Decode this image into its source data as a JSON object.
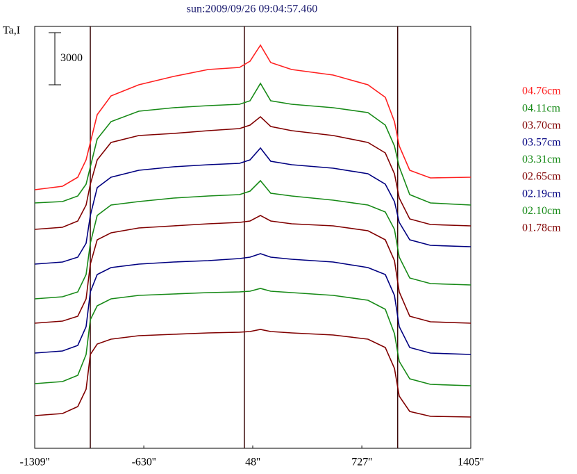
{
  "chart_data": {
    "type": "line",
    "title": "sun:2009/09/26 09:04:57.460",
    "y_label": "Ta,I",
    "scalebar": 3000,
    "vlines": [
      -963,
      -4,
      950
    ],
    "x": [
      -1309,
      -1136,
      -1041,
      -989,
      -963,
      -920,
      -834,
      -661,
      -445,
      -229,
      -34,
      31,
      96,
      160,
      290,
      549,
      765,
      873,
      930,
      960,
      1025,
      1154,
      1405
    ],
    "xlim": [
      -1309,
      1405
    ],
    "xticks": [
      {
        "value": -1309,
        "label": "-1309''"
      },
      {
        "value": -630,
        "label": "-630''"
      },
      {
        "value": 48,
        "label": "48''"
      },
      {
        "value": 727,
        "label": "727''"
      },
      {
        "value": 1405,
        "label": "1405''"
      }
    ],
    "ylim": [
      0,
      24280
    ],
    "series": [
      {
        "name": "04.76cm",
        "color": "#ff2020",
        "values": [
          14880,
          15080,
          15600,
          16600,
          17600,
          19200,
          20280,
          20920,
          21400,
          21800,
          21920,
          22280,
          23200,
          22200,
          21800,
          21480,
          20920,
          20200,
          18800,
          17400,
          16000,
          15560,
          15600
        ]
      },
      {
        "name": "04.11cm",
        "color": "#178a17",
        "values": [
          14120,
          14200,
          14520,
          15200,
          16200,
          17800,
          18800,
          19400,
          19600,
          19720,
          19800,
          20000,
          21000,
          20000,
          19800,
          19600,
          19320,
          18600,
          17400,
          16200,
          14600,
          14120,
          14000
        ]
      },
      {
        "name": "03.70cm",
        "color": "#800000",
        "values": [
          12600,
          12720,
          13080,
          14000,
          15200,
          16600,
          17600,
          18000,
          18120,
          18280,
          18400,
          18600,
          19080,
          18520,
          18280,
          18000,
          17600,
          17000,
          15800,
          14400,
          13200,
          12880,
          12800
        ]
      },
      {
        "name": "03.57cm",
        "color": "#000080",
        "values": [
          10600,
          10720,
          11000,
          11800,
          13400,
          15000,
          15600,
          16000,
          16200,
          16320,
          16400,
          16600,
          17280,
          16520,
          16320,
          16120,
          15800,
          15200,
          14200,
          13000,
          12000,
          11680,
          11600
        ]
      },
      {
        "name": "03.31cm",
        "color": "#178a17",
        "values": [
          8600,
          8720,
          9000,
          10000,
          11800,
          13400,
          14000,
          14200,
          14400,
          14520,
          14600,
          14800,
          15400,
          14680,
          14520,
          14280,
          14000,
          13600,
          12600,
          11000,
          9800,
          9480,
          9400
        ]
      },
      {
        "name": "02.65cm",
        "color": "#800000",
        "values": [
          7200,
          7320,
          7600,
          8600,
          10600,
          12000,
          12400,
          12680,
          12800,
          12920,
          13000,
          13080,
          13400,
          13080,
          12920,
          12800,
          12520,
          12000,
          10800,
          9000,
          7600,
          7280,
          7200
        ]
      },
      {
        "name": "02.19cm",
        "color": "#000080",
        "values": [
          5480,
          5600,
          5920,
          7000,
          9000,
          10000,
          10400,
          10600,
          10720,
          10800,
          10920,
          11000,
          11200,
          11000,
          10880,
          10720,
          10400,
          10000,
          8800,
          7000,
          5800,
          5480,
          5400
        ]
      },
      {
        "name": "02.10cm",
        "color": "#178a17",
        "values": [
          3720,
          3840,
          4200,
          5400,
          7400,
          8200,
          8600,
          8800,
          8880,
          8960,
          9000,
          9040,
          9200,
          9040,
          8960,
          8800,
          8520,
          8000,
          6600,
          5000,
          4000,
          3680,
          3600
        ]
      },
      {
        "name": "01.78cm",
        "color": "#800000",
        "values": [
          1880,
          2000,
          2400,
          3400,
          5400,
          6000,
          6280,
          6480,
          6560,
          6640,
          6680,
          6720,
          6840,
          6720,
          6640,
          6520,
          6280,
          5800,
          4600,
          3000,
          2120,
          1840,
          1800
        ]
      }
    ]
  }
}
